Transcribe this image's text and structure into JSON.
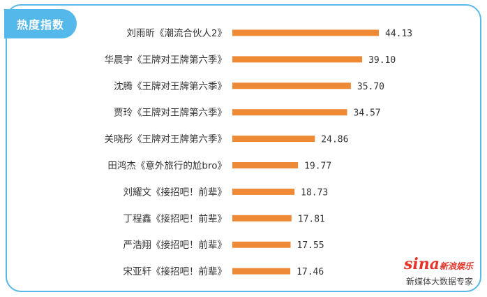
{
  "badge_title": "热度指数",
  "watermark": {
    "logo_text": "sina",
    "logo_sub": "新浪娱乐",
    "caption": "新媒体大数据专家"
  },
  "colors": {
    "bar": "#ee8a35",
    "frame": "#5ab7e8",
    "badge": "#55b8ea"
  },
  "chart_data": {
    "type": "bar",
    "orientation": "horizontal",
    "categories": [
      "刘雨昕《潮流合伙人2》",
      "华晨宇《王牌对王牌第六季》",
      "沈腾《王牌对王牌第六季》",
      "贾玲《王牌对王牌第六季》",
      "关晓彤《王牌对王牌第六季》",
      "田鸿杰《意外旅行的尬bro》",
      "刘耀文《接招吧！前辈》",
      "丁程鑫《接招吧！前辈》",
      "严浩翔《接招吧！前辈》",
      "宋亚轩《接招吧！前辈》"
    ],
    "values": [
      44.13,
      39.1,
      35.7,
      34.57,
      24.86,
      19.77,
      18.73,
      17.81,
      17.55,
      17.46
    ],
    "value_labels": [
      "44.13",
      "39.10",
      "35.70",
      "34.57",
      "24.86",
      "19.77",
      "18.73",
      "17.81",
      "17.55",
      "17.46"
    ],
    "title": "",
    "xlabel": "",
    "ylabel": "",
    "xlim": [
      0,
      50
    ],
    "grid": false
  }
}
